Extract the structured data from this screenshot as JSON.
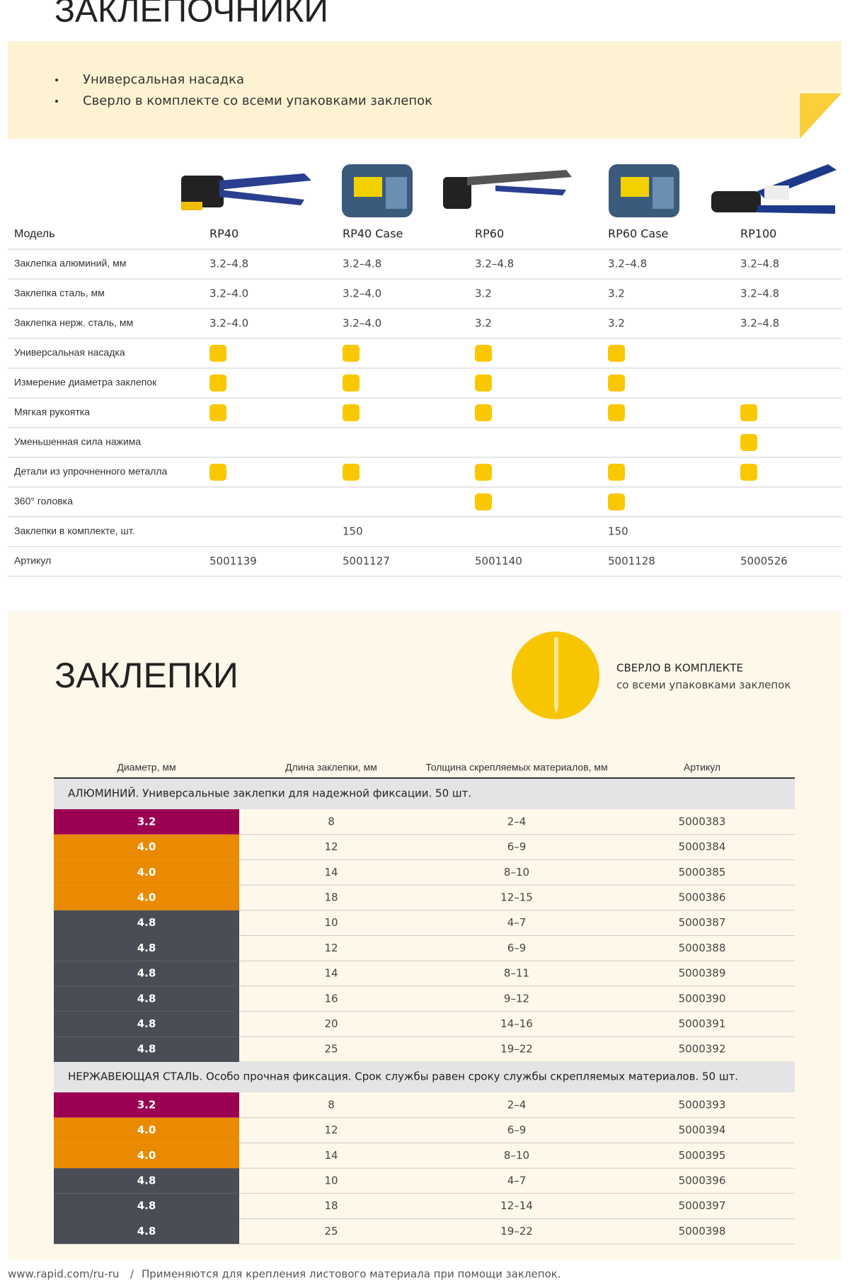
{
  "header": {
    "title": "ЗАКЛЕПОЧНИКИ",
    "bullets": [
      "Универсальная насадка",
      "Сверло в комплекте со всеми упаковками заклепок"
    ]
  },
  "tools": {
    "columns": [
      "Модель",
      "RP40",
      "RP40 Case",
      "RP60",
      "RP60 Case",
      "RP100"
    ],
    "rows": [
      {
        "label": "Заклепка алюминий, мм",
        "cells": [
          "3.2–4.8",
          "3.2–4.8",
          "3.2–4.8",
          "3.2–4.8",
          "3.2–4.8"
        ]
      },
      {
        "label": "Заклепка сталь, мм",
        "cells": [
          "3.2–4.0",
          "3.2–4.0",
          "3.2",
          "3.2",
          "3.2–4.8"
        ]
      },
      {
        "label": "Заклепка нерж. сталь, мм",
        "cells": [
          "3.2–4.0",
          "3.2–4.0",
          "3.2",
          "3.2",
          "3.2–4.8"
        ]
      },
      {
        "label": "Универсальная насадка",
        "cells": [
          true,
          true,
          true,
          true,
          false
        ]
      },
      {
        "label": "Измерение диаметра заклепок",
        "cells": [
          true,
          true,
          true,
          true,
          false
        ]
      },
      {
        "label": "Мягкая рукоятка",
        "cells": [
          true,
          true,
          true,
          true,
          true
        ]
      },
      {
        "label": "Уменьшенная сила нажима",
        "cells": [
          false,
          false,
          false,
          false,
          true
        ]
      },
      {
        "label": "Детали из упрочненного металла",
        "cells": [
          true,
          true,
          true,
          true,
          true
        ]
      },
      {
        "label": "360° головка",
        "cells": [
          false,
          false,
          true,
          true,
          false
        ]
      },
      {
        "label": "Заклепки в комплекте, шт.",
        "cells": [
          null,
          "150",
          null,
          "150",
          null
        ]
      },
      {
        "label": "Артикул",
        "cells": [
          "5001139",
          "5001127",
          "5001140",
          "5001128",
          "5000526"
        ]
      }
    ]
  },
  "rivets": {
    "title": "ЗАКЛЕПКИ",
    "drill": {
      "title": "СВЕРЛО В КОМПЛЕКТЕ",
      "subtitle": "со всеми упаковками заклепок"
    },
    "headers": [
      "Диаметр, мм",
      "Длина заклепки, мм",
      "Толщина скрепляемых материалов, мм",
      "Артикул"
    ],
    "colors": {
      "3.2": "#9c0052",
      "4.0": "#ea8a00",
      "4.8": "#4b4d56"
    },
    "groups": [
      {
        "title": "АЛЮМИНИЙ. Универсальные заклепки для надежной фиксации. 50 шт.",
        "rows": [
          [
            "3.2",
            "8",
            "2–4",
            "5000383"
          ],
          [
            "4.0",
            "12",
            "6–9",
            "5000384"
          ],
          [
            "4.0",
            "14",
            "8–10",
            "5000385"
          ],
          [
            "4.0",
            "18",
            "12–15",
            "5000386"
          ],
          [
            "4.8",
            "10",
            "4–7",
            "5000387"
          ],
          [
            "4.8",
            "12",
            "6–9",
            "5000388"
          ],
          [
            "4.8",
            "14",
            "8–11",
            "5000389"
          ],
          [
            "4.8",
            "16",
            "9–12",
            "5000390"
          ],
          [
            "4.8",
            "20",
            "14–16",
            "5000391"
          ],
          [
            "4.8",
            "25",
            "19–22",
            "5000392"
          ]
        ]
      },
      {
        "title": "НЕРЖАВЕЮЩАЯ СТАЛЬ. Особо прочная фиксация. Срок службы равен сроку службы скрепляемых материалов. 50 шт.",
        "rows": [
          [
            "3.2",
            "8",
            "2–4",
            "5000393"
          ],
          [
            "4.0",
            "12",
            "6–9",
            "5000394"
          ],
          [
            "4.0",
            "14",
            "8–10",
            "5000395"
          ],
          [
            "4.8",
            "10",
            "4–7",
            "5000396"
          ],
          [
            "4.8",
            "18",
            "12–14",
            "5000397"
          ],
          [
            "4.8",
            "25",
            "19–22",
            "5000398"
          ]
        ]
      }
    ]
  },
  "footer": {
    "url": "www.rapid.com/ru-ru",
    "separator": "/",
    "text": "Применяются для крепления листового материала при помощи заклепок."
  }
}
